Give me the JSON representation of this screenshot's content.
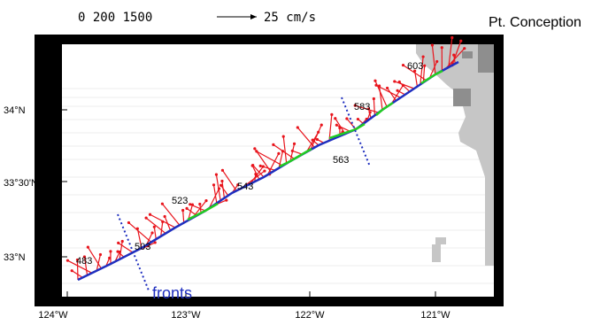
{
  "map": {
    "header_scale_text": "0  200 1500",
    "header_vector_label": "25 cm/s",
    "place_label": "Pt. Conception",
    "fronts_label": "fronts",
    "lon_ticks": [
      "124°W",
      "123°W",
      "122°W",
      "121°W"
    ],
    "lat_ticks": [
      "34°N",
      "33°30'N",
      "33°N"
    ],
    "stations": [
      "483",
      "503",
      "523",
      "543",
      "563",
      "583",
      "603"
    ],
    "colors": {
      "land": "#bdbdbd",
      "land_dark": "#8e8e8e",
      "track": "#1f2fbf",
      "track_green": "#22cc22",
      "vectors": "#e8141c",
      "fronts": "#1f2fbf",
      "frame": "#000000"
    }
  }
}
